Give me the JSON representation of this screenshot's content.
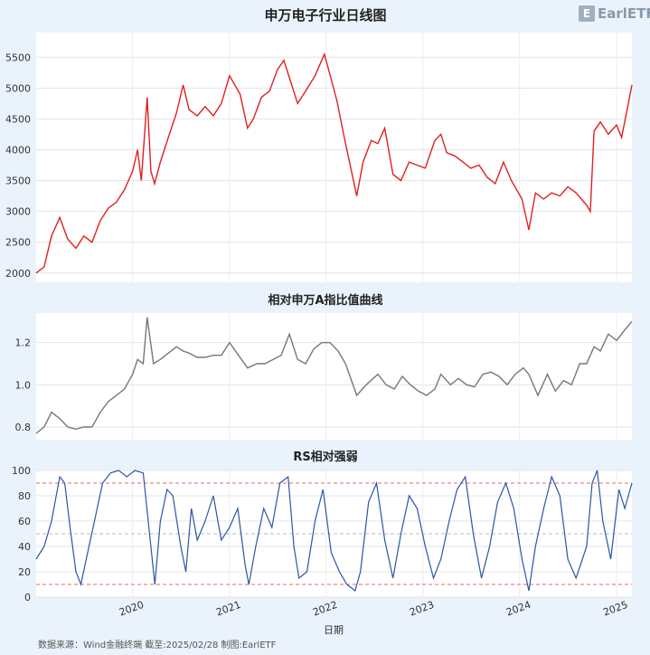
{
  "logo": {
    "text": "EarlETF",
    "color": "#8a99a8"
  },
  "footer": "数据来源：Wind金融终端 截至:2025/02/28 制图:EarlETF",
  "colors": {
    "price": "#e02020",
    "ratio": "#777777",
    "rs": "#2a56a8",
    "refline_hi": "#e66",
    "refline_mid": "#bbb",
    "background": "#eaf3fb",
    "panel": "#ffffff"
  },
  "chart_data": [
    {
      "type": "line",
      "title": "申万电子行业日线图",
      "xlabel": "",
      "ylabel": "",
      "xlim": [
        "2019-01-02",
        "2025-02-28"
      ],
      "ylim": [
        1850,
        5900
      ],
      "yticks": [
        2000,
        2500,
        3000,
        3500,
        4000,
        4500,
        5000,
        5500
      ],
      "grid": true,
      "series": [
        {
          "x": [
            "2019-01-02",
            "2019-02-01",
            "2019-03-01",
            "2019-04-01",
            "2019-05-01",
            "2019-06-01",
            "2019-07-01",
            "2019-08-01",
            "2019-09-01",
            "2019-10-01",
            "2019-11-01",
            "2019-12-01",
            "2020-01-01",
            "2020-01-20",
            "2020-02-03",
            "2020-02-25",
            "2020-03-10",
            "2020-03-24",
            "2020-04-15",
            "2020-05-15",
            "2020-06-15",
            "2020-07-10",
            "2020-08-01",
            "2020-09-01",
            "2020-10-01",
            "2020-11-01",
            "2020-12-01",
            "2021-01-01",
            "2021-02-10",
            "2021-03-10",
            "2021-04-01",
            "2021-05-01",
            "2021-06-01",
            "2021-07-01",
            "2021-07-25",
            "2021-08-20",
            "2021-09-15",
            "2021-10-15",
            "2021-11-20",
            "2021-12-25",
            "2022-01-10",
            "2022-02-10",
            "2022-03-10",
            "2022-04-26",
            "2022-05-20",
            "2022-06-20",
            "2022-07-15",
            "2022-08-10",
            "2022-09-10",
            "2022-10-10",
            "2022-11-10",
            "2022-12-10",
            "2023-01-10",
            "2023-02-15",
            "2023-03-10",
            "2023-04-01",
            "2023-05-01",
            "2023-06-01",
            "2023-07-01",
            "2023-08-01",
            "2023-09-01",
            "2023-10-01",
            "2023-11-01",
            "2023-12-01",
            "2024-01-10",
            "2024-02-05",
            "2024-03-01",
            "2024-04-01",
            "2024-05-01",
            "2024-06-01",
            "2024-07-01",
            "2024-08-01",
            "2024-09-10",
            "2024-09-24",
            "2024-10-08",
            "2024-11-01",
            "2024-12-01",
            "2025-01-01",
            "2025-01-20",
            "2025-02-10",
            "2025-02-28"
          ],
          "y": [
            2000,
            2100,
            2600,
            2900,
            2550,
            2400,
            2600,
            2500,
            2850,
            3050,
            3150,
            3350,
            3650,
            4000,
            3500,
            4850,
            3650,
            3450,
            3800,
            4200,
            4600,
            5050,
            4650,
            4550,
            4700,
            4550,
            4750,
            5200,
            4900,
            4350,
            4500,
            4850,
            4950,
            5300,
            5450,
            5100,
            4750,
            4950,
            5200,
            5550,
            5300,
            4800,
            4200,
            3250,
            3800,
            4150,
            4100,
            4350,
            3600,
            3500,
            3800,
            3750,
            3700,
            4150,
            4250,
            3950,
            3900,
            3800,
            3700,
            3750,
            3550,
            3450,
            3800,
            3500,
            3200,
            2700,
            3300,
            3200,
            3300,
            3250,
            3400,
            3300,
            3100,
            3000,
            4300,
            4450,
            4250,
            4400,
            4200,
            4650,
            5050
          ]
        }
      ]
    },
    {
      "type": "line",
      "title": "相对申万A指比值曲线",
      "xlabel": "",
      "ylabel": "",
      "xlim": [
        "2019-01-02",
        "2025-02-28"
      ],
      "ylim": [
        0.74,
        1.34
      ],
      "yticks": [
        0.8,
        1.0,
        1.2
      ],
      "grid": true,
      "series": [
        {
          "x": [
            "2019-01-02",
            "2019-02-01",
            "2019-03-01",
            "2019-04-01",
            "2019-05-01",
            "2019-06-01",
            "2019-07-01",
            "2019-08-01",
            "2019-09-01",
            "2019-10-01",
            "2019-11-01",
            "2019-12-01",
            "2020-01-01",
            "2020-01-20",
            "2020-02-10",
            "2020-02-25",
            "2020-03-20",
            "2020-04-15",
            "2020-05-15",
            "2020-06-15",
            "2020-07-10",
            "2020-08-01",
            "2020-09-01",
            "2020-10-01",
            "2020-11-01",
            "2020-12-01",
            "2021-01-01",
            "2021-02-15",
            "2021-03-10",
            "2021-04-15",
            "2021-05-15",
            "2021-06-15",
            "2021-07-15",
            "2021-08-15",
            "2021-09-15",
            "2021-10-15",
            "2021-11-15",
            "2021-12-15",
            "2022-01-15",
            "2022-02-15",
            "2022-03-15",
            "2022-04-26",
            "2022-06-01",
            "2022-07-15",
            "2022-08-15",
            "2022-09-15",
            "2022-10-15",
            "2022-11-15",
            "2022-12-15",
            "2023-01-15",
            "2023-02-15",
            "2023-03-10",
            "2023-04-15",
            "2023-05-15",
            "2023-06-15",
            "2023-07-15",
            "2023-08-15",
            "2023-09-15",
            "2023-10-15",
            "2023-11-15",
            "2023-12-15",
            "2024-01-15",
            "2024-02-05",
            "2024-03-10",
            "2024-04-15",
            "2024-05-15",
            "2024-06-15",
            "2024-07-15",
            "2024-08-15",
            "2024-09-10",
            "2024-10-08",
            "2024-11-01",
            "2024-12-01",
            "2025-01-01",
            "2025-02-01",
            "2025-02-28"
          ],
          "y": [
            0.77,
            0.8,
            0.87,
            0.84,
            0.8,
            0.79,
            0.8,
            0.8,
            0.87,
            0.92,
            0.95,
            0.98,
            1.05,
            1.12,
            1.1,
            1.32,
            1.1,
            1.12,
            1.15,
            1.18,
            1.16,
            1.15,
            1.13,
            1.13,
            1.14,
            1.14,
            1.2,
            1.12,
            1.08,
            1.1,
            1.1,
            1.12,
            1.14,
            1.24,
            1.12,
            1.1,
            1.17,
            1.2,
            1.2,
            1.16,
            1.1,
            0.95,
            1.0,
            1.05,
            1.0,
            0.98,
            1.04,
            1.0,
            0.97,
            0.95,
            0.98,
            1.05,
            1.0,
            1.03,
            1.0,
            0.99,
            1.05,
            1.06,
            1.04,
            1.0,
            1.05,
            1.08,
            1.05,
            0.95,
            1.05,
            0.97,
            1.02,
            1.0,
            1.1,
            1.1,
            1.18,
            1.16,
            1.24,
            1.21,
            1.26,
            1.3
          ]
        }
      ]
    },
    {
      "type": "line",
      "title": "RS相对强弱",
      "xlabel": "日期",
      "ylabel": "",
      "xlim": [
        "2019-01-02",
        "2025-02-28"
      ],
      "ylim": [
        0,
        100
      ],
      "yticks": [
        0,
        20,
        40,
        60,
        80,
        100
      ],
      "xticks": [
        "2020",
        "2021",
        "2022",
        "2023",
        "2024",
        "2025"
      ],
      "reference_lines": [
        90,
        50,
        10
      ],
      "grid": true,
      "series": [
        {
          "x": [
            "2019-01-02",
            "2019-02-01",
            "2019-03-01",
            "2019-04-01",
            "2019-04-20",
            "2019-05-10",
            "2019-06-01",
            "2019-06-20",
            "2019-07-10",
            "2019-08-10",
            "2019-09-10",
            "2019-10-10",
            "2019-11-10",
            "2019-12-10",
            "2020-01-10",
            "2020-02-10",
            "2020-03-10",
            "2020-03-25",
            "2020-04-15",
            "2020-05-10",
            "2020-06-01",
            "2020-07-01",
            "2020-07-20",
            "2020-08-10",
            "2020-09-01",
            "2020-10-01",
            "2020-11-01",
            "2020-12-01",
            "2021-01-01",
            "2021-02-01",
            "2021-03-01",
            "2021-03-15",
            "2021-04-10",
            "2021-05-10",
            "2021-06-10",
            "2021-07-10",
            "2021-08-10",
            "2021-09-01",
            "2021-09-20",
            "2021-10-20",
            "2021-11-20",
            "2021-12-20",
            "2022-01-20",
            "2022-02-20",
            "2022-03-20",
            "2022-04-20",
            "2022-05-10",
            "2022-06-10",
            "2022-07-10",
            "2022-08-10",
            "2022-09-10",
            "2022-10-10",
            "2022-11-10",
            "2022-12-10",
            "2023-01-10",
            "2023-02-10",
            "2023-03-10",
            "2023-04-10",
            "2023-05-10",
            "2023-06-10",
            "2023-07-10",
            "2023-08-10",
            "2023-09-10",
            "2023-10-10",
            "2023-11-10",
            "2023-12-10",
            "2024-01-10",
            "2024-02-05",
            "2024-03-01",
            "2024-04-01",
            "2024-05-01",
            "2024-06-01",
            "2024-07-01",
            "2024-08-01",
            "2024-09-10",
            "2024-10-01",
            "2024-10-20",
            "2024-11-10",
            "2024-12-10",
            "2025-01-10",
            "2025-02-01",
            "2025-02-28"
          ],
          "y": [
            30,
            40,
            60,
            95,
            90,
            55,
            20,
            10,
            30,
            60,
            90,
            98,
            100,
            95,
            100,
            98,
            40,
            10,
            60,
            85,
            80,
            40,
            20,
            70,
            45,
            60,
            80,
            45,
            55,
            70,
            25,
            10,
            40,
            70,
            55,
            90,
            95,
            40,
            15,
            20,
            60,
            85,
            35,
            20,
            10,
            5,
            20,
            75,
            90,
            45,
            15,
            50,
            80,
            70,
            40,
            15,
            30,
            60,
            85,
            95,
            50,
            15,
            40,
            75,
            90,
            70,
            30,
            5,
            40,
            70,
            95,
            80,
            30,
            15,
            40,
            90,
            100,
            60,
            30,
            85,
            70,
            90
          ]
        }
      ]
    }
  ]
}
